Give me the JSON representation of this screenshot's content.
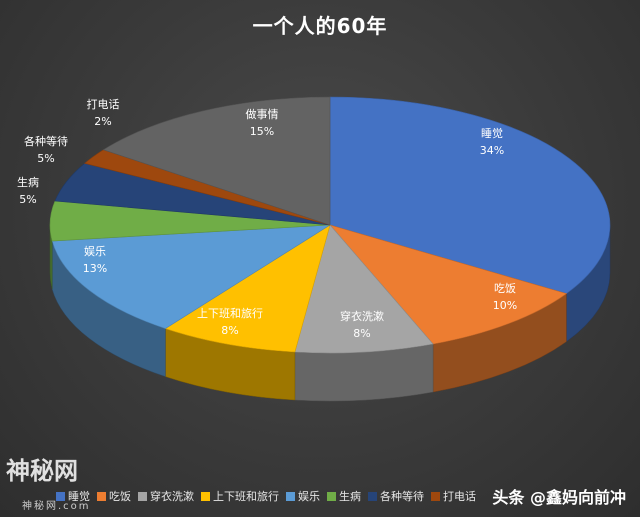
{
  "chart_data": {
    "type": "pie",
    "title": "一个人的60年",
    "categories": [
      "睡觉",
      "吃饭",
      "穿衣洗漱",
      "上下班和旅行",
      "娱乐",
      "生病",
      "各种等待",
      "打电话",
      "做事情"
    ],
    "values": [
      34,
      10,
      8,
      8,
      13,
      5,
      5,
      2,
      15
    ],
    "value_labels": [
      "34%",
      "10%",
      "8%",
      "8%",
      "13%",
      "5%",
      "5%",
      "2%",
      "15%"
    ],
    "colors": [
      "#4472C4",
      "#ED7D31",
      "#A5A5A5",
      "#FFC000",
      "#5B9BD5",
      "#70AD47",
      "#264478",
      "#9E480E",
      "#636363"
    ],
    "legend": [
      "睡觉",
      "吃饭",
      "穿衣洗漱",
      "上下班和旅行",
      "娱乐",
      "生病",
      "各种等待",
      "打电话"
    ],
    "legend_position": "bottom",
    "style": "3d"
  },
  "watermarks": {
    "left": "神秘网",
    "left_sub": "神秘网.com",
    "right": "头条 @鑫妈向前冲"
  }
}
